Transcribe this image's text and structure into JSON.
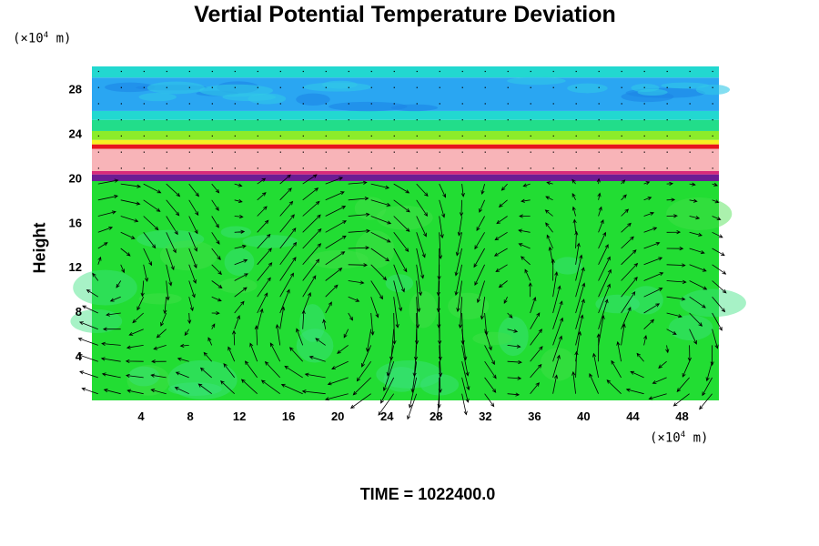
{
  "chart_data": {
    "type": "heatmap",
    "title": "Vertial Potential Temperature Deviation",
    "xlabel": "",
    "ylabel": "Height",
    "x_unit": {
      "prefix": "(×10",
      "exp": "4",
      "suffix": " m)"
    },
    "y_unit": {
      "prefix": "(×10",
      "exp": "4",
      "suffix": " m)"
    },
    "xlim": [
      0,
      51
    ],
    "ylim": [
      0,
      30
    ],
    "x_ticks": [
      4,
      8,
      12,
      16,
      20,
      24,
      28,
      32,
      36,
      40,
      44,
      48
    ],
    "y_ticks": [
      4,
      8,
      12,
      16,
      20,
      24,
      28
    ],
    "bands": [
      {
        "y0": 0,
        "y1": 19.7,
        "color": "#22dd33"
      },
      {
        "y0": 19.7,
        "y1": 20.3,
        "color": "#6c1c94"
      },
      {
        "y0": 20.3,
        "y1": 20.6,
        "color": "#d72a7a"
      },
      {
        "y0": 20.6,
        "y1": 22.6,
        "color": "#f8b4b8"
      },
      {
        "y0": 22.6,
        "y1": 23.0,
        "color": "#e8141e"
      },
      {
        "y0": 23.0,
        "y1": 23.4,
        "color": "#f6f022"
      },
      {
        "y0": 23.4,
        "y1": 24.2,
        "color": "#8cec2a"
      },
      {
        "y0": 24.2,
        "y1": 25.2,
        "color": "#22dd8a"
      },
      {
        "y0": 25.2,
        "y1": 26.0,
        "color": "#22d8d0"
      },
      {
        "y0": 26.0,
        "y1": 29.0,
        "color": "#2aa6f2"
      },
      {
        "y0": 29.0,
        "y1": 30.0,
        "color": "#22d8d0"
      }
    ],
    "vortices": [
      {
        "x": 3,
        "y": 12,
        "r": 7,
        "dir": -1
      },
      {
        "x": 11,
        "y": 12,
        "r": 6,
        "dir": 1
      },
      {
        "x": 20,
        "y": 8,
        "r": 8,
        "dir": -1
      },
      {
        "x": 33,
        "y": 8,
        "r": 6,
        "dir": 1
      },
      {
        "x": 45,
        "y": 5,
        "r": 6,
        "dir": -1
      }
    ],
    "wind_field_top": 19.7
  },
  "time_label": "TIME = 1022400.0"
}
